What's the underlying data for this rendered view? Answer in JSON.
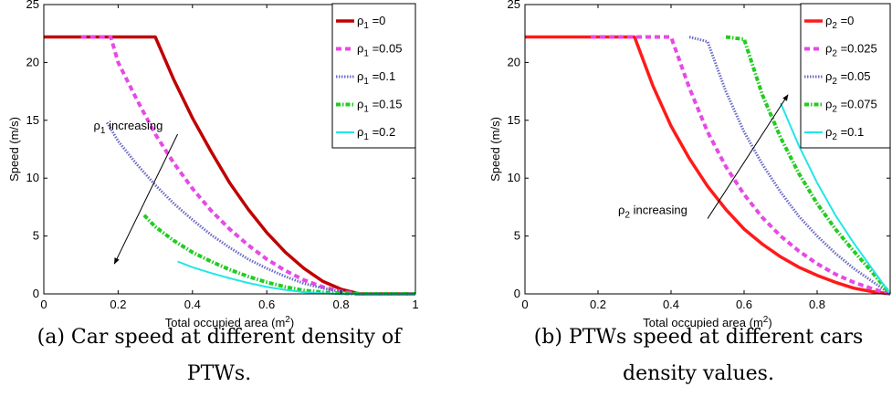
{
  "chart_data": [
    {
      "type": "line",
      "xlabel": "Total occupied area (m",
      "xlabel_sup": "2",
      "xlabel_tail": ")",
      "ylabel": "Speed (m/s)",
      "xlim": [
        0,
        1
      ],
      "ylim": [
        0,
        25
      ],
      "xticks": [
        "0",
        "0.2",
        "0.4",
        "0.6",
        "0.8",
        "1"
      ],
      "yticks": [
        "0",
        "5",
        "10",
        "15",
        "20",
        "25"
      ],
      "grid": false,
      "legend_position": "top-right",
      "annotation": {
        "sym": "ρ",
        "sub": "1",
        "text": " increasing",
        "from": [
          0.36,
          13.8
        ],
        "to": [
          0.19,
          2.6
        ]
      },
      "caption": [
        "(a) Car speed at different density of",
        "PTWs."
      ],
      "series": [
        {
          "sym": "ρ",
          "sub": "1",
          "eq": " =0",
          "color": "#c00000",
          "dash": "",
          "width": 3.5,
          "x": [
            0,
            0.3,
            0.35,
            0.4,
            0.45,
            0.5,
            0.55,
            0.6,
            0.65,
            0.7,
            0.75,
            0.8,
            0.85,
            1.0
          ],
          "y": [
            22.2,
            22.2,
            18.5,
            15.2,
            12.3,
            9.6,
            7.3,
            5.3,
            3.6,
            2.2,
            1.1,
            0.4,
            0,
            0
          ]
        },
        {
          "sym": "ρ",
          "sub": "1",
          "eq": " =0.05",
          "color": "#e64ae6",
          "dash": "6,4",
          "width": 4,
          "x": [
            0.1,
            0.18,
            0.2,
            0.25,
            0.3,
            0.35,
            0.4,
            0.45,
            0.5,
            0.55,
            0.6,
            0.65,
            0.7,
            0.75,
            0.8,
            0.85,
            1.0
          ],
          "y": [
            22.2,
            22.2,
            20,
            16.8,
            13.8,
            11.3,
            9.1,
            7.2,
            5.6,
            4.2,
            3.0,
            2.0,
            1.2,
            0.6,
            0.2,
            0,
            0
          ]
        },
        {
          "sym": "ρ",
          "sub": "1",
          "eq": " =0.1",
          "color": "#6b6bc9",
          "dash": "1.5,1.5",
          "width": 3,
          "x": [
            0.17,
            0.2,
            0.25,
            0.3,
            0.35,
            0.4,
            0.45,
            0.5,
            0.55,
            0.6,
            0.65,
            0.7,
            0.75,
            0.8,
            0.85,
            1.0
          ],
          "y": [
            14.8,
            13.2,
            11.2,
            9.4,
            7.8,
            6.4,
            5.1,
            4.0,
            3.0,
            2.2,
            1.5,
            0.9,
            0.5,
            0.2,
            0,
            0
          ]
        },
        {
          "sym": "ρ",
          "sub": "1",
          "eq": " =0.15",
          "color": "#22cc22",
          "dash": "5,2,1.5,2",
          "width": 4,
          "x": [
            0.27,
            0.3,
            0.35,
            0.4,
            0.45,
            0.5,
            0.55,
            0.6,
            0.65,
            0.7,
            0.75,
            0.8,
            0.85,
            1.0
          ],
          "y": [
            6.8,
            5.8,
            4.6,
            3.6,
            2.8,
            2.1,
            1.5,
            1.0,
            0.6,
            0.3,
            0.15,
            0.05,
            0,
            0
          ]
        },
        {
          "sym": "ρ",
          "sub": "1",
          "eq": " =0.2",
          "color": "#22e6e6",
          "dash": "",
          "width": 2,
          "x": [
            0.36,
            0.4,
            0.45,
            0.5,
            0.55,
            0.6,
            0.65,
            0.7,
            0.75,
            0.8,
            0.85,
            1.0
          ],
          "y": [
            2.8,
            2.3,
            1.8,
            1.35,
            0.95,
            0.6,
            0.35,
            0.15,
            0.05,
            0,
            0,
            0
          ]
        }
      ]
    },
    {
      "type": "line",
      "xlabel": "Total occupied area (m",
      "xlabel_sup": "2",
      "xlabel_tail": ")",
      "ylabel": "Speed (m/s)",
      "xlim": [
        0,
        1
      ],
      "ylim": [
        0,
        25
      ],
      "xticks": [
        "0",
        "0.2",
        "0.4",
        "0.6",
        "0.8"
      ],
      "yticks": [
        "0",
        "5",
        "10",
        "15",
        "20",
        "25"
      ],
      "grid": false,
      "legend_position": "top-right",
      "annotation": {
        "sym": "ρ",
        "sub": "2",
        "text": " increasing",
        "from": [
          0.5,
          6.5
        ],
        "to": [
          0.72,
          17.2
        ]
      },
      "caption": [
        "(b) PTWs speed at different cars",
        "density values."
      ],
      "series": [
        {
          "sym": "ρ",
          "sub": "2",
          "eq": " =0",
          "color": "#ff1a1a",
          "dash": "",
          "width": 3.5,
          "x": [
            0,
            0.3,
            0.35,
            0.4,
            0.45,
            0.5,
            0.55,
            0.6,
            0.65,
            0.7,
            0.75,
            0.8,
            0.85,
            0.9,
            0.95,
            1.0
          ],
          "y": [
            22.2,
            22.2,
            18.0,
            14.5,
            11.7,
            9.3,
            7.3,
            5.6,
            4.3,
            3.2,
            2.3,
            1.6,
            1.0,
            0.5,
            0.2,
            0
          ]
        },
        {
          "sym": "ρ",
          "sub": "2",
          "eq": " =0.025",
          "color": "#e64ae6",
          "dash": "6,4",
          "width": 4,
          "x": [
            0.18,
            0.4,
            0.45,
            0.5,
            0.55,
            0.6,
            0.65,
            0.7,
            0.75,
            0.8,
            0.85,
            0.9,
            0.95,
            1.0
          ],
          "y": [
            22.2,
            22.2,
            17.8,
            14.0,
            11.0,
            8.6,
            6.6,
            5.0,
            3.7,
            2.6,
            1.7,
            1.0,
            0.45,
            0
          ]
        },
        {
          "sym": "ρ",
          "sub": "2",
          "eq": " =0.05",
          "color": "#6b6bc9",
          "dash": "1.5,1.5",
          "width": 3,
          "x": [
            0.45,
            0.5,
            0.55,
            0.6,
            0.65,
            0.7,
            0.75,
            0.8,
            0.85,
            0.9,
            0.95,
            1.0
          ],
          "y": [
            22.2,
            21.8,
            17.5,
            14.0,
            11.2,
            8.8,
            6.7,
            5.0,
            3.5,
            2.2,
            1.1,
            0
          ]
        },
        {
          "sym": "ρ",
          "sub": "2",
          "eq": " =0.075",
          "color": "#22cc22",
          "dash": "5,2,1.5,2",
          "width": 4,
          "x": [
            0.55,
            0.6,
            0.65,
            0.7,
            0.75,
            0.8,
            0.85,
            0.9,
            0.95,
            1.0
          ],
          "y": [
            22.2,
            22.0,
            17.2,
            13.5,
            10.4,
            7.8,
            5.6,
            3.7,
            1.9,
            0
          ]
        },
        {
          "sym": "ρ",
          "sub": "2",
          "eq": " =0.1",
          "color": "#22e6e6",
          "dash": "",
          "width": 2,
          "x": [
            0.7,
            0.75,
            0.8,
            0.85,
            0.9,
            0.95,
            1.0
          ],
          "y": [
            16.5,
            12.8,
            9.6,
            6.8,
            4.4,
            2.2,
            0
          ]
        }
      ]
    }
  ]
}
